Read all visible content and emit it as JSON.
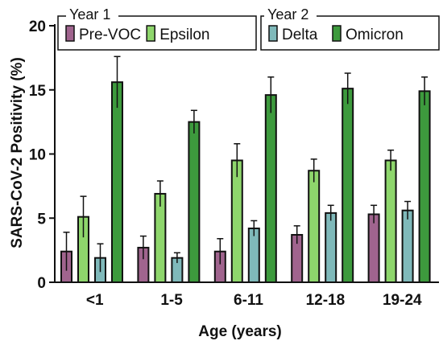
{
  "chart_data": {
    "type": "bar",
    "xlabel": "Age (years)",
    "ylabel": "SARS-CoV-2 Positivity  (%)",
    "ylim": [
      0,
      20
    ],
    "yticks": [
      "0",
      "5",
      "10",
      "15",
      "20"
    ],
    "categories": [
      "<1",
      "1-5",
      "6-11",
      "12-18",
      "19-24"
    ],
    "legend_groups": [
      {
        "title": "Year 1",
        "series": [
          "Pre-VOC",
          "Epsilon"
        ]
      },
      {
        "title": "Year 2",
        "series": [
          "Delta",
          "Omicron"
        ]
      }
    ],
    "series": [
      {
        "name": "Pre-VOC",
        "color": "#a0648e",
        "values": [
          2.4,
          2.7,
          2.4,
          3.7,
          5.3
        ],
        "err": [
          1.5,
          0.9,
          1.0,
          0.7,
          0.7
        ]
      },
      {
        "name": "Epsilon",
        "color": "#8ed66c",
        "values": [
          5.1,
          6.9,
          9.5,
          8.7,
          9.5
        ],
        "err": [
          1.6,
          1.0,
          1.3,
          0.9,
          0.8
        ]
      },
      {
        "name": "Delta",
        "color": "#7fb9ba",
        "values": [
          1.9,
          1.9,
          4.2,
          5.4,
          5.6
        ],
        "err": [
          1.1,
          0.4,
          0.6,
          0.6,
          0.7
        ]
      },
      {
        "name": "Omicron",
        "color": "#3d9a3d",
        "values": [
          15.6,
          12.5,
          14.6,
          15.1,
          14.9
        ],
        "err": [
          2.0,
          0.9,
          1.4,
          1.2,
          1.1
        ]
      }
    ]
  }
}
